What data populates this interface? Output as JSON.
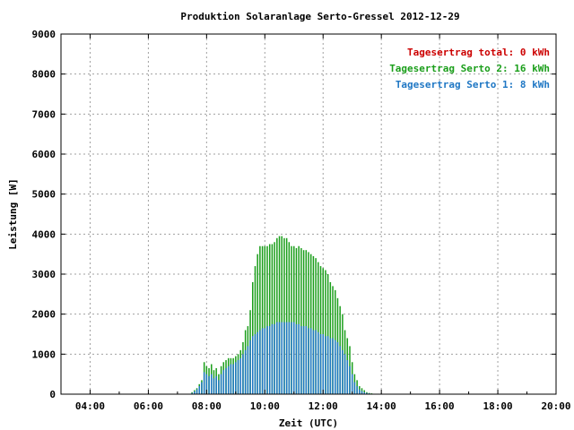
{
  "chart_data": {
    "type": "bar",
    "title": "Produktion Solaranlage Serto-Gressel 2012-12-29",
    "xlabel": "Zeit (UTC)",
    "ylabel": "Leistung [W]",
    "xlim": [
      3.0,
      20.0
    ],
    "ylim": [
      0,
      9000
    ],
    "x_ticks": [
      {
        "value": 4,
        "label": "04:00"
      },
      {
        "value": 6,
        "label": "06:00"
      },
      {
        "value": 8,
        "label": "08:00"
      },
      {
        "value": 10,
        "label": "10:00"
      },
      {
        "value": 12,
        "label": "12:00"
      },
      {
        "value": 14,
        "label": "14:00"
      },
      {
        "value": 16,
        "label": "16:00"
      },
      {
        "value": 18,
        "label": "18:00"
      },
      {
        "value": 20,
        "label": "20:00"
      }
    ],
    "y_ticks": [
      {
        "value": 0,
        "label": "0"
      },
      {
        "value": 1000,
        "label": "1000"
      },
      {
        "value": 2000,
        "label": "2000"
      },
      {
        "value": 3000,
        "label": "3000"
      },
      {
        "value": 4000,
        "label": "4000"
      },
      {
        "value": 5000,
        "label": "5000"
      },
      {
        "value": 6000,
        "label": "6000"
      },
      {
        "value": 7000,
        "label": "7000"
      },
      {
        "value": 8000,
        "label": "8000"
      },
      {
        "value": 9000,
        "label": "9000"
      }
    ],
    "grid": true,
    "legend_position": "top-right",
    "legend": [
      {
        "label": "Tagesertrag total: 0 kWh",
        "color": "#cc0000"
      },
      {
        "label": "Tagesertrag Serto 2: 16 kWh",
        "color": "#1a9e1a"
      },
      {
        "label": "Tagesertrag Serto 1: 8 kWh",
        "color": "#1f77c4"
      }
    ],
    "x": [
      7.5,
      7.583,
      7.667,
      7.75,
      7.833,
      7.917,
      8.0,
      8.083,
      8.167,
      8.25,
      8.333,
      8.417,
      8.5,
      8.583,
      8.667,
      8.75,
      8.833,
      8.917,
      9.0,
      9.083,
      9.167,
      9.25,
      9.333,
      9.417,
      9.5,
      9.583,
      9.667,
      9.75,
      9.833,
      9.917,
      10.0,
      10.083,
      10.167,
      10.25,
      10.333,
      10.417,
      10.5,
      10.583,
      10.667,
      10.75,
      10.833,
      10.917,
      11.0,
      11.083,
      11.167,
      11.25,
      11.333,
      11.417,
      11.5,
      11.583,
      11.667,
      11.75,
      11.833,
      11.917,
      12.0,
      12.083,
      12.167,
      12.25,
      12.333,
      12.417,
      12.5,
      12.583,
      12.667,
      12.75,
      12.833,
      12.917,
      13.0,
      13.083,
      13.167,
      13.25,
      13.333,
      13.417,
      13.5,
      13.583,
      13.667,
      13.75,
      13.833,
      13.917,
      14.0,
      14.083,
      14.167,
      14.25,
      14.333,
      14.417,
      14.5,
      14.583,
      14.667,
      14.75,
      14.833,
      14.917,
      15.0,
      15.083,
      15.167,
      15.25,
      15.333,
      15.417,
      15.5,
      15.583
    ],
    "series": [
      {
        "name": "Serto 2",
        "color": "#1a9e1a",
        "values": [
          50,
          100,
          150,
          250,
          350,
          800,
          700,
          650,
          750,
          600,
          650,
          500,
          700,
          800,
          850,
          900,
          900,
          900,
          950,
          1000,
          1100,
          1300,
          1600,
          1700,
          2100,
          2800,
          3200,
          3500,
          3700,
          3700,
          3700,
          3700,
          3750,
          3750,
          3800,
          3900,
          3950,
          3950,
          3900,
          3900,
          3800,
          3700,
          3700,
          3650,
          3700,
          3650,
          3600,
          3600,
          3550,
          3500,
          3450,
          3400,
          3300,
          3200,
          3150,
          3100,
          3000,
          2800,
          2700,
          2600,
          2400,
          2200,
          2000,
          1600,
          1400,
          1200,
          800,
          500,
          350,
          200,
          150,
          100,
          50,
          30,
          20,
          10,
          10,
          10,
          10,
          10,
          10,
          10,
          10,
          10,
          10,
          10,
          10,
          10,
          10,
          10,
          10,
          10,
          10,
          10,
          10,
          10,
          10,
          10
        ]
      },
      {
        "name": "Serto 1",
        "color": "#1f77c4",
        "values": [
          30,
          70,
          120,
          200,
          300,
          550,
          500,
          450,
          500,
          400,
          450,
          350,
          500,
          600,
          650,
          700,
          750,
          750,
          800,
          850,
          900,
          1000,
          1100,
          1200,
          1350,
          1450,
          1500,
          1550,
          1600,
          1650,
          1650,
          1700,
          1700,
          1750,
          1750,
          1800,
          1800,
          1800,
          1800,
          1800,
          1800,
          1800,
          1800,
          1750,
          1750,
          1700,
          1700,
          1700,
          1650,
          1650,
          1600,
          1600,
          1550,
          1500,
          1500,
          1450,
          1450,
          1400,
          1400,
          1350,
          1300,
          1200,
          1100,
          1000,
          850,
          700,
          500,
          300,
          200,
          120,
          80,
          50,
          30,
          20,
          10,
          10,
          10,
          10,
          10,
          10,
          10,
          10,
          10,
          10,
          10,
          10,
          10,
          10,
          10,
          10,
          10,
          10,
          10,
          10,
          10,
          10,
          10,
          10
        ]
      }
    ]
  }
}
